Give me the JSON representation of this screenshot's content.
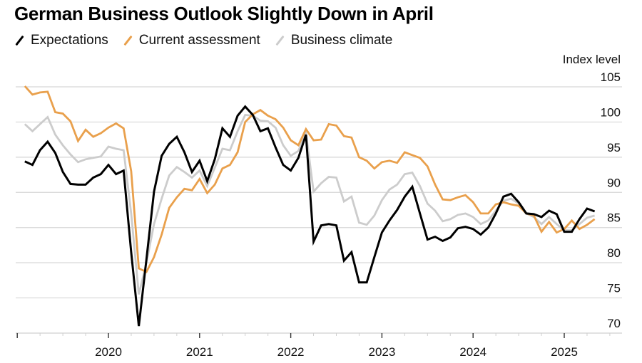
{
  "chart_data": {
    "type": "line",
    "title": "German Business Outlook Slightly Down in April",
    "ylabel": "Index level",
    "xlabel": "",
    "ylim": [
      70,
      105
    ],
    "yticks": [
      105,
      100,
      95,
      90,
      85,
      80,
      75,
      70
    ],
    "xticks": [
      "2020",
      "2021",
      "2022",
      "2023",
      "2024",
      "2025"
    ],
    "x_start": "2019-01",
    "x_end": "2025-04",
    "frequency": "monthly",
    "grid": true,
    "legend_position": "top-left",
    "series": [
      {
        "name": "Expectations",
        "color": "#000000",
        "values": [
          94.4,
          93.9,
          96.0,
          97.2,
          95.6,
          92.9,
          91.2,
          91.1,
          91.1,
          92.1,
          92.6,
          93.9,
          92.6,
          93.1,
          81.5,
          71.0,
          80.5,
          90.1,
          95.2,
          96.9,
          97.9,
          95.7,
          92.9,
          94.5,
          91.6,
          94.7,
          99.1,
          97.9,
          100.9,
          102.2,
          101.0,
          98.7,
          99.1,
          96.4,
          93.9,
          93.1,
          94.9,
          98.2,
          83.0,
          85.3,
          85.5,
          85.3,
          80.3,
          81.5,
          77.2,
          77.2,
          80.8,
          84.3,
          86.0,
          87.5,
          89.4,
          90.8,
          87.0,
          83.3,
          83.7,
          83.1,
          83.6,
          84.9,
          85.1,
          84.8,
          84.0,
          85.0,
          87.0,
          89.4,
          89.8,
          88.6,
          87.0,
          86.9,
          86.5,
          87.4,
          86.9,
          84.4,
          84.4,
          86.2,
          87.7,
          87.3
        ]
      },
      {
        "name": "Current assessment",
        "color": "#E9A04C",
        "values": [
          105.1,
          103.9,
          104.2,
          104.3,
          101.4,
          101.2,
          100.1,
          97.3,
          98.9,
          97.9,
          98.4,
          99.2,
          99.8,
          99.1,
          93.0,
          79.2,
          78.7,
          80.8,
          84.0,
          87.8,
          89.3,
          90.5,
          90.3,
          91.9,
          89.9,
          91.1,
          93.4,
          93.9,
          95.7,
          100.0,
          101.1,
          101.7,
          100.9,
          100.4,
          99.2,
          97.4,
          96.7,
          99.0,
          97.4,
          97.5,
          99.7,
          99.5,
          98.0,
          97.8,
          95.0,
          94.5,
          93.4,
          94.3,
          94.5,
          94.2,
          95.7,
          95.3,
          94.9,
          93.7,
          91.1,
          89.0,
          88.9,
          89.3,
          89.6,
          88.6,
          87.0,
          87.0,
          88.3,
          88.6,
          88.3,
          88.1,
          87.0,
          86.7,
          84.4,
          85.8,
          84.3,
          84.8,
          86.0,
          84.8,
          85.4,
          86.2
        ]
      },
      {
        "name": "Business climate",
        "color": "#CCCCCC",
        "values": [
          99.7,
          98.7,
          99.7,
          100.7,
          98.2,
          96.7,
          95.4,
          94.3,
          94.7,
          94.9,
          95.1,
          96.5,
          96.2,
          96.0,
          87.0,
          75.5,
          80.0,
          85.5,
          89.1,
          92.4,
          93.6,
          92.9,
          92.1,
          93.1,
          90.9,
          93.5,
          96.2,
          96.0,
          98.7,
          101.0,
          100.9,
          100.2,
          100.1,
          99.2,
          96.7,
          95.2,
          95.9,
          98.5,
          90.1,
          91.3,
          92.2,
          92.1,
          88.7,
          89.4,
          85.7,
          85.4,
          86.7,
          88.9,
          90.4,
          91.1,
          92.6,
          92.8,
          90.9,
          88.4,
          87.4,
          85.9,
          86.2,
          86.8,
          87.0,
          86.5,
          85.5,
          86.0,
          87.4,
          88.8,
          89.1,
          88.4,
          87.0,
          86.5,
          85.5,
          86.5,
          85.5,
          84.6,
          84.6,
          85.5,
          86.4,
          86.7
        ]
      }
    ]
  }
}
